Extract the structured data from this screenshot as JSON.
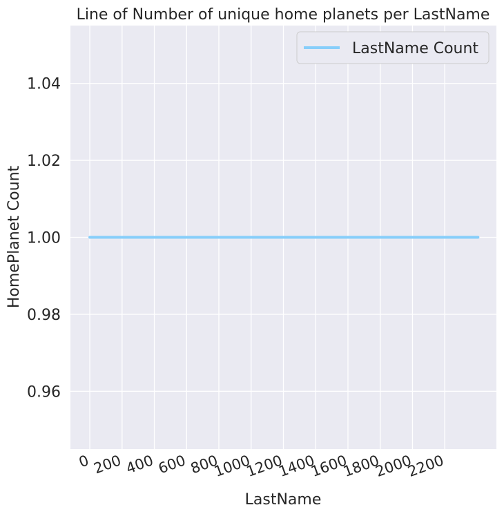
{
  "chart_data": {
    "type": "line",
    "title": "Line of Number of unique home planets per LastName",
    "xlabel": "LastName",
    "ylabel": "HomePlanet Count",
    "xlim": [
      -120,
      2520
    ],
    "ylim": [
      0.945,
      1.055
    ],
    "x_ticks": [
      0,
      200,
      400,
      600,
      800,
      1000,
      1200,
      1400,
      1600,
      1800,
      2000,
      2200
    ],
    "y_ticks": [
      0.96,
      0.98,
      1.0,
      1.02,
      1.04
    ],
    "y_tick_labels": [
      "0.96",
      "0.98",
      "1.00",
      "1.02",
      "1.04"
    ],
    "grid": true,
    "legend_position": "top-right",
    "series": [
      {
        "name": "LastName Count",
        "color": "#87cefa",
        "x": [
          0,
          2406
        ],
        "y": [
          1.0,
          1.0
        ]
      }
    ]
  }
}
